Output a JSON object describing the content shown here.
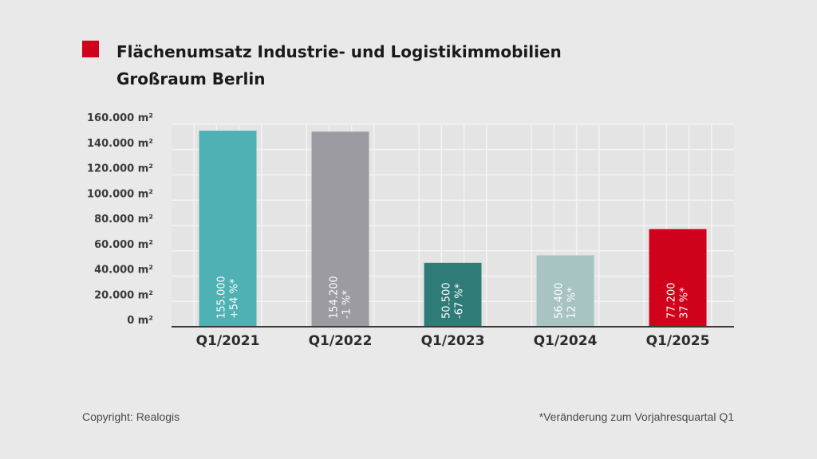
{
  "chart_data": {
    "type": "bar",
    "title": "Flächenumsatz Industrie- und Logistikimmobilien",
    "subtitle": "Großraum Berlin",
    "categories": [
      "Q1/2021",
      "Q1/2022",
      "Q1/2023",
      "Q1/2024",
      "Q1/2025"
    ],
    "values": [
      155000,
      154200,
      50500,
      56400,
      77200
    ],
    "value_labels": [
      "155.000",
      "154.200",
      "50.500",
      "56.400",
      "77.200"
    ],
    "change_labels": [
      "+54 %*",
      "-1 %*",
      "-67 %*",
      "12 %*",
      "37 %*"
    ],
    "colors": [
      "#4eb1b3",
      "#9b9ba1",
      "#2f7b78",
      "#a7c3c2",
      "#d0021b"
    ],
    "y_ticks": [
      "0 m²",
      "20.000 m²",
      "40.000 m²",
      "60.000 m²",
      "80.000 m²",
      "100.000 m²",
      "120.000 m²",
      "140.000 m²",
      "160.000 m²"
    ],
    "ylim": [
      0,
      160000
    ],
    "grid": true,
    "xlabel": "",
    "ylabel": ""
  },
  "footer": {
    "copyright": "Copyright: Realogis",
    "note": "*Veränderung zum Vorjahresquartal Q1"
  },
  "colors": {
    "accent": "#d0021b"
  }
}
